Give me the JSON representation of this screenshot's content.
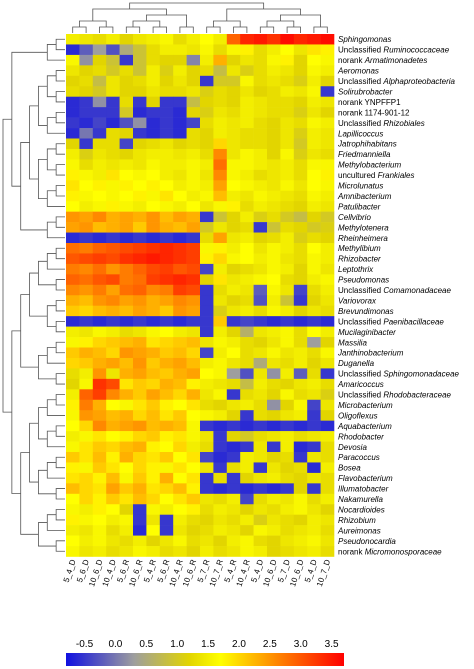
{
  "chart_data": {
    "type": "heatmap",
    "rows": [
      {
        "label": "Sphingomonas",
        "italic": true
      },
      {
        "label": "Unclassified Ruminococcaceae",
        "prefix": "Unclassified ",
        "name": "Ruminococcaceae"
      },
      {
        "label": "norank Armatimonadetes",
        "prefix": "norank ",
        "name": "Armatimonadetes"
      },
      {
        "label": "Aeromonas",
        "italic": true
      },
      {
        "label": "Unclassified Alphaproteobacteria",
        "prefix": "Unclassified ",
        "name": "Alphaproteobacteria"
      },
      {
        "label": "Solirubrobacter",
        "italic": true
      },
      {
        "label": "norank YNPFFP1",
        "italic": false
      },
      {
        "label": "norank 1174-901-12",
        "italic": false
      },
      {
        "label": "Unclassified Rhizobiales",
        "prefix": "Unclassified ",
        "name": "Rhizobiales"
      },
      {
        "label": "Lapillicoccus",
        "italic": true
      },
      {
        "label": "Jatrophihabitans",
        "italic": true
      },
      {
        "label": "Friedmanniella",
        "italic": true
      },
      {
        "label": "Methylobacterium",
        "italic": true
      },
      {
        "label": "uncultured Frankiales",
        "prefix": "uncultured ",
        "name": "Frankiales"
      },
      {
        "label": "Microlunatus",
        "italic": true
      },
      {
        "label": "Amnibacterium",
        "italic": true
      },
      {
        "label": "Patulibacter",
        "italic": true
      },
      {
        "label": "Cellvibrio",
        "italic": true
      },
      {
        "label": "Methylotenera",
        "italic": true
      },
      {
        "label": "Rheinheimera",
        "italic": true
      },
      {
        "label": "Methylibium",
        "italic": true
      },
      {
        "label": "Rhizobacter",
        "italic": true
      },
      {
        "label": "Leptothrix",
        "italic": true
      },
      {
        "label": "Pseudomonas",
        "italic": true
      },
      {
        "label": "Unclassified Comamonadaceae",
        "prefix": "Unclassified ",
        "name": "Comamonadaceae"
      },
      {
        "label": "Variovorax",
        "italic": true
      },
      {
        "label": "Brevundimonas",
        "italic": true
      },
      {
        "label": "Unclassified Paenibacillaceae",
        "prefix": "Unclassified ",
        "name": "Paenibacillaceae"
      },
      {
        "label": "Mucilaginibacter",
        "italic": true
      },
      {
        "label": "Massilia",
        "italic": true
      },
      {
        "label": "Janthinobacterium",
        "italic": true
      },
      {
        "label": "Duganella",
        "italic": true
      },
      {
        "label": "Unclassified Sphingomonadaceae",
        "prefix": "Unclassified ",
        "name": "Sphingomonadaceae"
      },
      {
        "label": "Amaricoccus",
        "italic": true
      },
      {
        "label": "Unclassified Rhodobacteraceae",
        "prefix": "Unclassified ",
        "name": "Rhodobacteraceae"
      },
      {
        "label": "Microbacterium",
        "italic": true
      },
      {
        "label": "Oligoflexus",
        "italic": true
      },
      {
        "label": "Aquabacterium",
        "italic": true
      },
      {
        "label": "Rhodobacter",
        "italic": true
      },
      {
        "label": "Devosia",
        "italic": true
      },
      {
        "label": "Paracoccus",
        "italic": true
      },
      {
        "label": "Bosea",
        "italic": true
      },
      {
        "label": "Flavobacterium",
        "italic": true
      },
      {
        "label": "Illumatobacter",
        "italic": true
      },
      {
        "label": "Nakamurella",
        "italic": true
      },
      {
        "label": "Nocardioides",
        "italic": true
      },
      {
        "label": "Rhizobium",
        "italic": true
      },
      {
        "label": "Aureimonas",
        "italic": true
      },
      {
        "label": "Pseudonocardia",
        "italic": true
      },
      {
        "label": "norank Micromonosporaceae",
        "prefix": "norank ",
        "name": "Micromonosporaceae"
      }
    ],
    "columns": [
      "5_4_D",
      "5_6_D",
      "10_6_D",
      "10_4_D",
      "5_6_R",
      "10_6_R",
      "5_4_R",
      "5_6_R",
      "10_4_R",
      "10_6_R",
      "5_7_R",
      "10_7_R",
      "5_4_R",
      "10_4_R",
      "5_4_D",
      "10_6_D",
      "5_7_D",
      "10_6_D",
      "5_4_D",
      "10_7_D"
    ],
    "values": [
      [
        1.5,
        1.4,
        1.3,
        1.5,
        1.2,
        1.4,
        1.5,
        1.6,
        1.3,
        1.5,
        1.7,
        1.5,
        2.9,
        3.4,
        3.5,
        3.3,
        3.6,
        3.4,
        3.5,
        3.6
      ],
      [
        -0.6,
        -0.2,
        0.3,
        -0.3,
        0.5,
        0.9,
        1.3,
        1.5,
        1.5,
        1.4,
        1.6,
        1.3,
        1.6,
        1.8,
        1.3,
        1.5,
        1.7,
        1.4,
        1.9,
        1.8
      ],
      [
        1.6,
        0.2,
        1.2,
        0.9,
        -0.5,
        0.9,
        1.3,
        1.2,
        1.2,
        0.1,
        1.5,
        2.3,
        1.2,
        1.4,
        1.3,
        1.6,
        1.8,
        1.2,
        1.7,
        1.6
      ],
      [
        1.4,
        1.2,
        1.3,
        1.0,
        1.3,
        0.9,
        1.5,
        1.1,
        1.5,
        1.2,
        1.3,
        0.8,
        1.4,
        1.1,
        1.3,
        1.5,
        1.4,
        1.2,
        1.6,
        1.5
      ],
      [
        1.2,
        1.3,
        0.8,
        1.4,
        1.2,
        1.3,
        1.5,
        1.2,
        1.4,
        1.2,
        -0.5,
        1.0,
        1.0,
        1.6,
        1.3,
        1.4,
        1.3,
        1.1,
        1.5,
        1.2
      ],
      [
        1.3,
        1.2,
        1.0,
        1.4,
        1.2,
        1.2,
        1.4,
        1.3,
        1.3,
        1.4,
        1.1,
        1.3,
        1.2,
        1.4,
        1.2,
        1.3,
        1.5,
        1.4,
        1.6,
        -0.5
      ],
      [
        -0.6,
        -0.5,
        0.2,
        -0.5,
        1.3,
        -0.5,
        1.2,
        -0.5,
        -0.5,
        0.8,
        1.2,
        1.3,
        1.2,
        1.5,
        1.4,
        1.3,
        1.3,
        1.2,
        1.5,
        1.4
      ],
      [
        -0.6,
        -0.5,
        -0.5,
        -0.5,
        1.0,
        -0.6,
        -0.5,
        -0.5,
        -0.6,
        1.2,
        1.1,
        1.4,
        1.3,
        1.5,
        1.4,
        1.3,
        1.3,
        1.1,
        1.4,
        1.2
      ],
      [
        -0.5,
        -0.6,
        -0.4,
        -0.6,
        -0.3,
        0.2,
        -0.6,
        -0.5,
        -0.6,
        -0.4,
        1.3,
        1.5,
        1.4,
        1.5,
        1.3,
        1.2,
        1.4,
        1.3,
        1.6,
        1.5
      ],
      [
        -0.6,
        0.0,
        -0.5,
        1.3,
        1.2,
        -0.5,
        -0.6,
        -0.5,
        -0.6,
        1.3,
        1.2,
        1.5,
        1.4,
        1.3,
        1.3,
        1.2,
        1.4,
        1.1,
        1.5,
        1.4
      ],
      [
        1.2,
        -0.5,
        1.3,
        1.3,
        -0.4,
        1.2,
        1.3,
        1.4,
        1.2,
        1.3,
        1.2,
        2.0,
        1.4,
        1.3,
        1.3,
        1.2,
        1.4,
        1.0,
        1.5,
        1.4
      ],
      [
        1.5,
        1.1,
        1.4,
        1.3,
        1.2,
        1.4,
        1.5,
        1.5,
        1.4,
        1.5,
        1.3,
        2.6,
        1.4,
        1.6,
        1.5,
        1.2,
        1.6,
        1.1,
        1.4,
        1.3
      ],
      [
        1.6,
        1.3,
        1.5,
        1.4,
        1.5,
        1.4,
        1.6,
        1.5,
        1.5,
        1.6,
        1.5,
        2.8,
        1.6,
        1.6,
        1.5,
        1.4,
        1.5,
        1.3,
        1.6,
        1.6
      ],
      [
        1.8,
        1.6,
        1.5,
        1.9,
        1.7,
        1.6,
        1.7,
        1.5,
        1.4,
        1.6,
        1.4,
        2.6,
        1.6,
        1.5,
        1.3,
        1.4,
        1.5,
        1.3,
        1.7,
        1.8
      ],
      [
        1.9,
        1.7,
        1.8,
        1.6,
        1.8,
        1.7,
        1.8,
        1.7,
        1.5,
        1.6,
        1.5,
        2.4,
        1.7,
        1.6,
        1.5,
        1.4,
        1.6,
        1.4,
        1.7,
        1.6
      ],
      [
        1.8,
        1.6,
        1.7,
        1.6,
        1.7,
        1.8,
        1.6,
        1.9,
        1.7,
        1.5,
        1.6,
        2.2,
        1.5,
        1.4,
        1.6,
        1.5,
        1.4,
        1.3,
        1.6,
        1.5
      ],
      [
        1.7,
        1.5,
        1.6,
        1.8,
        1.6,
        1.5,
        1.7,
        1.6,
        1.5,
        1.7,
        1.4,
        1.6,
        1.8,
        1.3,
        1.5,
        1.4,
        1.3,
        1.2,
        1.5,
        1.4
      ],
      [
        2.5,
        2.4,
        2.6,
        2.3,
        2.4,
        2.3,
        2.5,
        2.2,
        2.4,
        2.3,
        -0.5,
        0.9,
        1.2,
        1.5,
        1.1,
        1.3,
        1.0,
        0.8,
        1.2,
        1.0
      ],
      [
        2.4,
        2.5,
        2.2,
        2.3,
        2.4,
        2.1,
        2.5,
        2.3,
        2.2,
        2.4,
        1.0,
        1.4,
        1.2,
        1.3,
        -0.5,
        0.9,
        1.3,
        1.2,
        1.0,
        1.1
      ],
      [
        -0.6,
        -0.5,
        -0.6,
        -0.5,
        -0.6,
        -0.5,
        -0.6,
        -0.5,
        -0.6,
        -0.5,
        1.3,
        2.4,
        1.4,
        1.5,
        1.2,
        1.3,
        1.5,
        1.1,
        1.3,
        1.2
      ],
      [
        2.8,
        2.7,
        2.9,
        3.0,
        3.1,
        3.2,
        3.3,
        3.4,
        3.3,
        3.2,
        1.6,
        1.8,
        1.5,
        1.7,
        1.4,
        1.6,
        1.5,
        1.3,
        1.7,
        1.5
      ],
      [
        3.0,
        3.1,
        3.2,
        3.1,
        3.3,
        3.4,
        3.5,
        3.4,
        3.3,
        3.2,
        1.8,
        2.0,
        1.6,
        1.7,
        1.5,
        1.6,
        1.4,
        1.3,
        1.6,
        1.5
      ],
      [
        2.7,
        2.6,
        2.8,
        2.5,
        2.7,
        2.9,
        3.1,
        3.2,
        3.0,
        3.1,
        -0.4,
        1.5,
        1.2,
        1.3,
        1.4,
        1.6,
        1.5,
        1.2,
        1.6,
        1.4
      ],
      [
        2.9,
        2.8,
        3.0,
        3.1,
        2.7,
        2.8,
        3.2,
        3.3,
        3.4,
        3.3,
        1.2,
        1.9,
        1.4,
        1.5,
        1.6,
        1.7,
        1.3,
        1.2,
        1.5,
        1.6
      ],
      [
        2.6,
        2.5,
        2.7,
        2.4,
        2.8,
        2.9,
        2.6,
        2.7,
        3.2,
        3.1,
        -0.5,
        1.3,
        1.5,
        1.4,
        -0.2,
        1.6,
        1.4,
        -0.4,
        1.3,
        1.5
      ],
      [
        2.3,
        2.2,
        2.5,
        2.6,
        2.4,
        2.5,
        2.3,
        2.4,
        2.6,
        2.5,
        -0.5,
        1.4,
        1.2,
        1.3,
        -0.3,
        1.5,
        0.9,
        -0.5,
        1.2,
        1.4
      ],
      [
        2.1,
        2.0,
        2.2,
        2.3,
        2.2,
        2.4,
        2.3,
        2.1,
        2.5,
        2.4,
        -0.5,
        1.1,
        1.4,
        1.5,
        1.3,
        1.6,
        1.5,
        1.2,
        1.4,
        1.3
      ],
      [
        -0.6,
        -0.5,
        -0.6,
        -0.5,
        -0.6,
        -0.5,
        -0.6,
        -0.5,
        -0.6,
        -0.5,
        -0.5,
        2.1,
        -0.5,
        -0.4,
        -0.5,
        -0.6,
        -0.5,
        -0.6,
        -0.5,
        -0.6
      ],
      [
        1.5,
        1.4,
        1.6,
        1.5,
        1.3,
        1.4,
        1.6,
        1.7,
        1.5,
        1.4,
        -0.5,
        1.5,
        1.2,
        0.6,
        1.4,
        1.5,
        1.6,
        1.3,
        1.7,
        1.5
      ],
      [
        1.6,
        1.8,
        2.0,
        2.1,
        2.2,
        2.3,
        1.9,
        2.0,
        2.1,
        2.2,
        1.4,
        1.6,
        1.5,
        1.3,
        1.2,
        1.4,
        1.6,
        1.3,
        0.3,
        1.2
      ],
      [
        2.1,
        2.3,
        2.2,
        2.0,
        2.5,
        2.4,
        2.3,
        2.1,
        2.2,
        2.0,
        -0.4,
        1.5,
        1.7,
        1.3,
        1.4,
        1.6,
        1.4,
        1.5,
        1.3,
        1.6
      ],
      [
        2.0,
        2.1,
        2.3,
        2.4,
        2.2,
        2.5,
        2.1,
        2.3,
        2.4,
        2.2,
        1.5,
        1.6,
        1.4,
        1.3,
        0.5,
        1.4,
        1.3,
        1.5,
        1.2,
        1.4
      ],
      [
        1.3,
        1.5,
        2.5,
        1.4,
        2.3,
        2.4,
        2.2,
        2.1,
        2.3,
        2.4,
        1.7,
        1.6,
        0.3,
        -0.3,
        1.4,
        0.2,
        1.5,
        -0.2,
        1.3,
        -0.5
      ],
      [
        1.2,
        1.6,
        3.3,
        3.1,
        1.9,
        2.1,
        2.0,
        2.3,
        2.2,
        1.8,
        1.5,
        1.4,
        1.3,
        0.8,
        1.5,
        1.3,
        1.2,
        1.4,
        1.5,
        1.3
      ],
      [
        1.5,
        2.9,
        3.2,
        2.6,
        2.3,
        2.1,
        2.4,
        2.2,
        2.0,
        2.3,
        1.4,
        1.6,
        -0.5,
        1.3,
        1.4,
        1.2,
        1.6,
        1.3,
        1.4,
        1.1
      ],
      [
        1.8,
        2.7,
        2.3,
        1.7,
        1.6,
        1.9,
        2.1,
        1.8,
        1.7,
        1.9,
        1.3,
        1.2,
        1.4,
        1.5,
        1.3,
        0.2,
        1.2,
        1.6,
        -0.4,
        1.4
      ],
      [
        1.6,
        2.5,
        2.4,
        2.2,
        2.3,
        2.0,
        2.2,
        1.9,
        2.1,
        1.7,
        1.6,
        1.5,
        1.2,
        -0.5,
        1.3,
        1.2,
        1.4,
        1.5,
        -0.5,
        1.2
      ],
      [
        1.7,
        2.0,
        2.6,
        2.3,
        2.4,
        2.5,
        2.2,
        2.3,
        2.2,
        1.6,
        -0.5,
        -0.6,
        -0.5,
        -0.6,
        -0.5,
        -0.6,
        -0.5,
        -0.6,
        -0.5,
        -0.6
      ],
      [
        1.5,
        1.6,
        1.9,
        1.7,
        1.8,
        2.0,
        2.1,
        1.8,
        1.9,
        1.6,
        1.4,
        -0.5,
        1.2,
        1.0,
        1.3,
        1.4,
        1.5,
        1.3,
        1.4,
        1.5
      ],
      [
        1.6,
        1.9,
        2.1,
        2.0,
        2.2,
        2.3,
        1.8,
        1.7,
        2.0,
        1.5,
        1.3,
        -0.5,
        -0.6,
        -0.5,
        1.4,
        -0.5,
        1.5,
        -0.6,
        -0.5,
        1.3
      ],
      [
        2.1,
        1.9,
        2.2,
        1.8,
        2.3,
        2.0,
        1.9,
        2.1,
        1.7,
        1.9,
        -0.4,
        -0.6,
        -0.5,
        1.5,
        1.4,
        1.2,
        1.3,
        -0.5,
        1.4,
        1.3
      ],
      [
        1.8,
        1.6,
        2.1,
        1.9,
        1.7,
        2.0,
        1.8,
        1.6,
        1.9,
        1.7,
        1.4,
        -0.5,
        1.3,
        1.5,
        -0.5,
        1.4,
        1.2,
        1.3,
        -0.6,
        1.5
      ],
      [
        1.9,
        2.0,
        1.8,
        2.2,
        1.6,
        2.1,
        1.8,
        2.3,
        1.7,
        1.9,
        -0.5,
        1.3,
        -0.5,
        1.2,
        1.4,
        1.5,
        1.3,
        1.2,
        1.4,
        1.3
      ],
      [
        2.2,
        2.0,
        1.9,
        2.4,
        2.1,
        2.3,
        1.9,
        2.0,
        2.2,
        1.8,
        -0.5,
        -0.6,
        -0.5,
        -0.6,
        -0.5,
        -0.6,
        -0.5,
        1.2,
        -0.5,
        1.3
      ],
      [
        1.7,
        2.0,
        1.8,
        2.1,
        1.9,
        2.2,
        2.0,
        1.7,
        1.9,
        2.1,
        1.4,
        1.3,
        1.5,
        -0.4,
        1.3,
        1.5,
        1.4,
        1.6,
        1.3,
        1.5
      ],
      [
        1.6,
        1.5,
        1.8,
        1.7,
        1.2,
        -0.5,
        1.6,
        1.5,
        1.7,
        1.8,
        1.3,
        1.5,
        1.4,
        1.2,
        1.4,
        1.3,
        1.5,
        1.6,
        1.4,
        1.2
      ],
      [
        1.8,
        1.6,
        1.7,
        1.5,
        1.6,
        -0.5,
        1.4,
        -0.5,
        1.5,
        1.3,
        1.2,
        1.4,
        1.3,
        1.5,
        1.1,
        1.4,
        1.3,
        1.2,
        1.5,
        1.4
      ],
      [
        1.5,
        1.4,
        1.6,
        1.3,
        1.5,
        -0.6,
        1.7,
        -0.5,
        1.4,
        1.2,
        1.3,
        1.5,
        1.4,
        1.2,
        1.6,
        1.5,
        1.3,
        1.4,
        1.5,
        1.3
      ],
      [
        1.7,
        1.5,
        1.6,
        1.4,
        1.3,
        1.5,
        1.2,
        1.4,
        1.6,
        1.3,
        1.4,
        1.2,
        1.5,
        1.6,
        1.3,
        1.2,
        1.4,
        1.5,
        1.6,
        1.4
      ],
      [
        1.6,
        1.4,
        1.5,
        1.3,
        1.4,
        1.6,
        1.5,
        1.3,
        1.4,
        1.2,
        1.5,
        1.3,
        1.4,
        1.6,
        1.5,
        1.2,
        1.3,
        1.4,
        1.5,
        1.3
      ]
    ],
    "color_scale": {
      "min": -0.8,
      "max": 3.7,
      "stops": [
        {
          "value": -0.8,
          "color": "#1010e0"
        },
        {
          "value": 0.3,
          "color": "#9e9e9e"
        },
        {
          "value": 1.2,
          "color": "#e2d500"
        },
        {
          "value": 1.7,
          "color": "#ffff00"
        },
        {
          "value": 2.6,
          "color": "#ff8800"
        },
        {
          "value": 3.7,
          "color": "#ff0000"
        }
      ]
    },
    "colorbar_ticks": [
      "-0.5",
      "0.0",
      "0.5",
      "1.0",
      "1.5",
      "2.0",
      "2.5",
      "3.0",
      "3.5"
    ],
    "row_dendrogram": "shown on left",
    "column_dendrogram": "shown on top"
  }
}
